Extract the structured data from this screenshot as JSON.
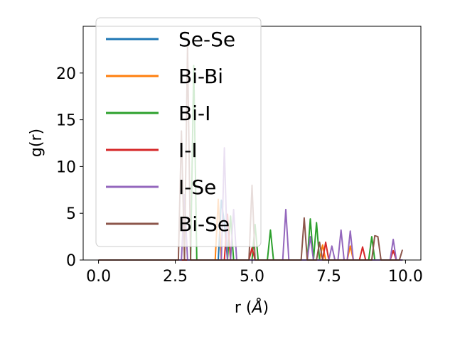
{
  "chart_data": {
    "type": "line",
    "xlabel": "r",
    "xlabel_unit": "Å",
    "ylabel": "g(r)",
    "xlim": [
      -0.5,
      10.5
    ],
    "ylim": [
      0,
      25
    ],
    "xticks": [
      0.0,
      2.5,
      5.0,
      7.5,
      10.0
    ],
    "xtick_labels": [
      "0.0",
      "2.5",
      "5.0",
      "7.5",
      "10.0"
    ],
    "yticks": [
      0,
      5,
      10,
      15,
      20
    ],
    "ytick_labels": [
      "0",
      "5",
      "10",
      "15",
      "20"
    ],
    "grid": false,
    "legend_position": "upper-left",
    "series": [
      {
        "name": "Se-Se",
        "color": "#1f77b4",
        "peaks": [
          [
            4.0,
            6.4
          ],
          [
            4.1,
            4.0
          ]
        ]
      },
      {
        "name": "Bi-Bi",
        "color": "#ff7f0e",
        "peaks": [
          [
            3.9,
            6.5
          ],
          [
            7.3,
            1.6
          ],
          [
            8.2,
            1.5
          ]
        ]
      },
      {
        "name": "Bi-I",
        "color": "#2ca02c",
        "peaks": [
          [
            3.1,
            20.8
          ],
          [
            4.3,
            4.7
          ],
          [
            5.1,
            3.8
          ],
          [
            5.6,
            3.2
          ],
          [
            6.9,
            4.4
          ],
          [
            7.1,
            4.0
          ],
          [
            8.9,
            2.5
          ]
        ]
      },
      {
        "name": "I-I",
        "color": "#d62728",
        "peaks": [
          [
            4.2,
            4.9
          ],
          [
            5.0,
            1.3
          ],
          [
            7.4,
            1.9
          ],
          [
            8.6,
            1.4
          ],
          [
            9.6,
            1.0
          ]
        ]
      },
      {
        "name": "I-Se",
        "color": "#9467bd",
        "peaks": [
          [
            2.8,
            7.0
          ],
          [
            4.1,
            12.0
          ],
          [
            4.4,
            5.4
          ],
          [
            6.1,
            5.4
          ],
          [
            6.9,
            2.5
          ],
          [
            7.6,
            1.5
          ],
          [
            7.9,
            3.2
          ],
          [
            8.2,
            3.1
          ],
          [
            9.6,
            2.2
          ]
        ]
      },
      {
        "name": "Bi-Se",
        "color": "#8c564b",
        "peaks": [
          [
            2.7,
            13.8
          ],
          [
            2.9,
            22.9
          ],
          [
            5.0,
            8.0
          ],
          [
            6.7,
            4.5
          ],
          [
            7.2,
            1.9
          ],
          [
            9.0,
            2.6
          ],
          [
            9.1,
            2.5
          ],
          [
            9.9,
            1.1
          ]
        ]
      }
    ]
  }
}
